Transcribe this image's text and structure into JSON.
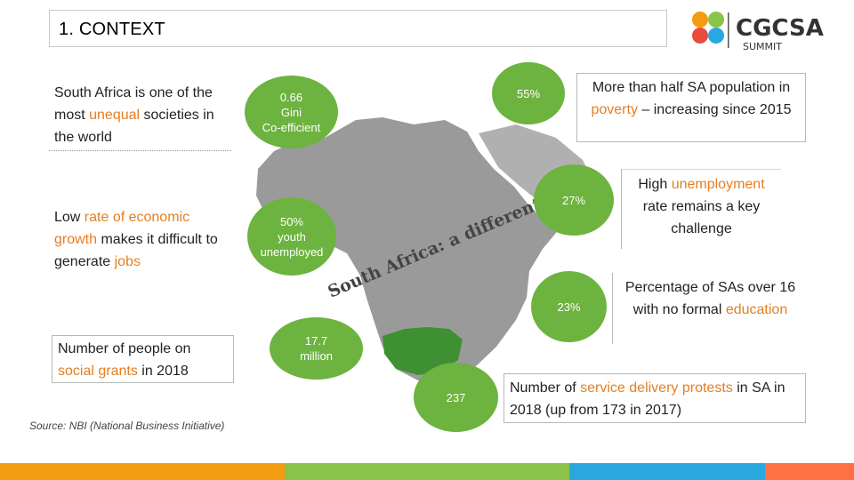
{
  "title": "1. CONTEXT",
  "logo": {
    "brand": "CGCSA",
    "sub": "SUMMIT"
  },
  "left": {
    "box1": {
      "a": "South Africa is one of the most ",
      "hl": "unequal",
      "b": " societies in the world"
    },
    "box2": {
      "a": "Low ",
      "hl": "rate of economic growth",
      "b": " makes it difficult to generate ",
      "hl2": "jobs"
    },
    "box3": {
      "a": "Number of people on ",
      "hl": "social grants",
      "b": " in 2018"
    }
  },
  "bubbles": {
    "gini": {
      "line1": "0.66",
      "line2": "Gini",
      "line3": "Co-efficient"
    },
    "poverty": {
      "value": "55%"
    },
    "youth": {
      "line1": "50%",
      "line2": "youth",
      "line3": "unemployed"
    },
    "unemployment": {
      "value": "27%"
    },
    "education": {
      "value": "23%"
    },
    "grants": {
      "line1": "17.7",
      "line2": "million"
    },
    "protests": {
      "value": "237"
    }
  },
  "map_caption": "South Africa: a different view",
  "right": {
    "box1": {
      "a": "More than half SA population in ",
      "hl": "poverty",
      "b": " – increasing since 2015"
    },
    "box2": {
      "a": "High ",
      "hl": "unemployment",
      "b": " rate remains a key challenge"
    },
    "box3": {
      "a": "Percentage of SAs over 16 with no formal ",
      "hl": "education"
    },
    "box4": {
      "a": "Number of ",
      "hl": "service delivery protests",
      "b": " in SA in 2018 (up from 173 in 2017)"
    }
  },
  "source": "Source: NBI (National Business Initiative)",
  "colors": {
    "accent": "#e67e22",
    "bubble": "#6db33f",
    "map": "#9a9a9a",
    "sa": "#3f8f33",
    "bar": [
      "#f39c12",
      "#8bc34a",
      "#29a8e0",
      "#ff7043"
    ]
  }
}
